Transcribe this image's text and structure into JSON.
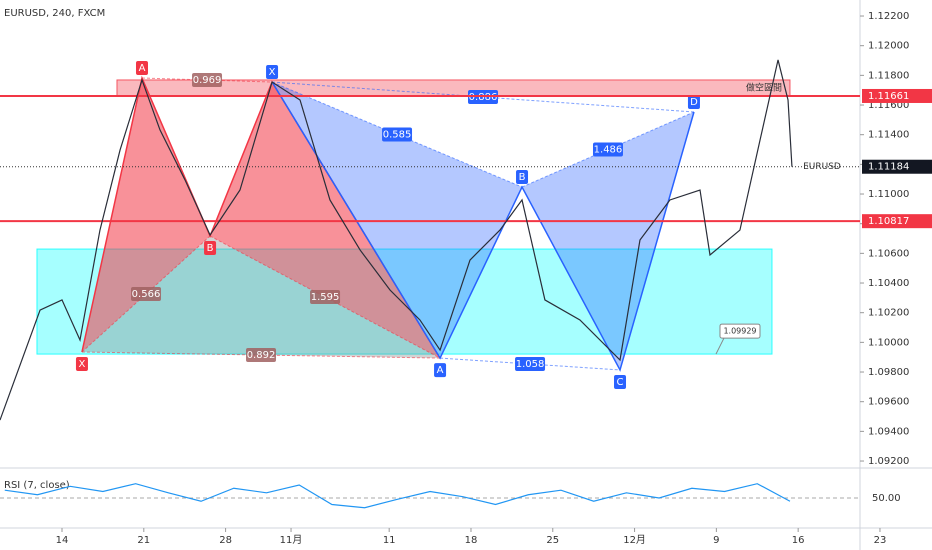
{
  "chart_data": {
    "type": "line",
    "title": "EURUSD, 240, FXCM",
    "xlim": [
      -3.79,
      48.78
    ],
    "ylim": [
      1.09153,
      1.12308
    ],
    "xticks": [
      {
        "value": 0,
        "label": "14"
      },
      {
        "value": 5,
        "label": "21"
      },
      {
        "value": 10,
        "label": "28"
      },
      {
        "value": 14,
        "label": "11月"
      },
      {
        "value": 20,
        "label": "11"
      },
      {
        "value": 25,
        "label": "18"
      },
      {
        "value": 30,
        "label": "25"
      },
      {
        "value": 35,
        "label": "12月"
      },
      {
        "value": 40,
        "label": "9"
      },
      {
        "value": 45,
        "label": "16"
      },
      {
        "value": 50,
        "label": "23"
      }
    ],
    "yticks": [
      {
        "value": 1.122,
        "label": "1.12200"
      },
      {
        "value": 1.12,
        "label": "1.12000"
      },
      {
        "value": 1.118,
        "label": "1.11800"
      },
      {
        "value": 1.116,
        "label": "1.11600"
      },
      {
        "value": 1.114,
        "label": "1.11400"
      },
      {
        "value": 1.112,
        "label": "1.11200"
      },
      {
        "value": 1.11,
        "label": "1.11000"
      },
      {
        "value": 1.108,
        "label": "1.10800"
      },
      {
        "value": 1.106,
        "label": "1.10600"
      },
      {
        "value": 1.104,
        "label": "1.10400"
      },
      {
        "value": 1.102,
        "label": "1.10200"
      },
      {
        "value": 1.1,
        "label": "1.10000"
      },
      {
        "value": 1.098,
        "label": "1.09800"
      },
      {
        "value": 1.096,
        "label": "1.09600"
      },
      {
        "value": 1.094,
        "label": "1.09400"
      },
      {
        "value": 1.092,
        "label": "1.09200"
      }
    ],
    "series": [
      {
        "name": "EURUSD",
        "color": "#2a2e39",
        "x": [
          -3.79,
          -1.34,
          0,
          1.1,
          2.32,
          3.55,
          4.89,
          5.99,
          7.52,
          9.05,
          10.88,
          12.84,
          14.55,
          16.38,
          18.22,
          20.05,
          21.88,
          23.11,
          24.94,
          26.77,
          28.12,
          29.52,
          31.66,
          34.11,
          35.33,
          37.16,
          39.0,
          39.61,
          41.44,
          42.67,
          43.77,
          44.38,
          44.62
        ],
        "values": [
          1.09476,
          1.10218,
          1.10286,
          1.10016,
          1.10757,
          1.11297,
          1.11769,
          1.11432,
          1.11095,
          1.10724,
          1.11027,
          1.11755,
          1.11634,
          1.1096,
          1.10623,
          1.10353,
          1.10151,
          1.09948,
          1.10555,
          1.10757,
          1.1096,
          1.10286,
          1.10151,
          1.09881,
          1.1069,
          1.1096,
          1.11027,
          1.10589,
          1.10757,
          1.11364,
          1.11904,
          1.11634,
          1.11184
        ]
      }
    ],
    "levels": [
      {
        "value": 1.11661,
        "label": "1.11661",
        "color": "#f23645"
      },
      {
        "value": 1.10817,
        "label": "1.10817",
        "color": "#f23645"
      }
    ],
    "last_price": {
      "name": "EURUSD",
      "value": 1.11184,
      "label": "1.11184"
    },
    "zones": [
      {
        "x": [
          3.36,
          44.5
        ],
        "y": [
          1.11661,
          1.11769
        ],
        "color": "#f23645",
        "label": "做空區間"
      },
      {
        "x": [
          -1.53,
          43.4
        ],
        "y": [
          1.09921,
          1.10629
        ],
        "color": "#00ffff",
        "label": "1.09929"
      }
    ],
    "patterns": [
      {
        "color": "#f23645",
        "points_x": [
          1.22,
          4.89,
          9.05,
          12.84,
          23.11
        ],
        "points_y": [
          1.09935,
          1.11782,
          1.10717,
          1.11755,
          1.09894
        ],
        "point_labels": [
          "X",
          "A",
          "B",
          null,
          null
        ],
        "ratios": [
          "0.969",
          "0.566",
          "1.595",
          "0.892"
        ]
      },
      {
        "color": "#2962ff",
        "points_x": [
          12.84,
          23.11,
          28.12,
          34.11,
          38.63
        ],
        "points_y": [
          1.11755,
          1.09894,
          1.11047,
          1.09814,
          1.11553
        ],
        "point_labels": [
          "X",
          "A",
          "B",
          "C",
          "D"
        ],
        "ratios": [
          "0.585",
          "0.886",
          "1.486",
          "1.058"
        ]
      }
    ],
    "rsi": {
      "title": "RSI (7, close)",
      "color": "#2196f3",
      "ylim": [
        10,
        90
      ],
      "yticks": [
        {
          "value": 50,
          "label": "50.00"
        }
      ],
      "x": [
        -3.5,
        -1.5,
        0.5,
        2.5,
        4.5,
        6.5,
        8.5,
        10.5,
        12.5,
        14.5,
        16.5,
        18.5,
        20.5,
        22.5,
        24.5,
        26.5,
        28.5,
        30.5,
        32.5,
        34.5,
        36.5,
        38.5,
        40.5,
        42.5,
        44.5
      ],
      "values": [
        62,
        55,
        68,
        60,
        72,
        58,
        45,
        65,
        58,
        70,
        40,
        35,
        48,
        60,
        52,
        40,
        55,
        62,
        45,
        58,
        50,
        65,
        60,
        72,
        45
      ]
    }
  }
}
